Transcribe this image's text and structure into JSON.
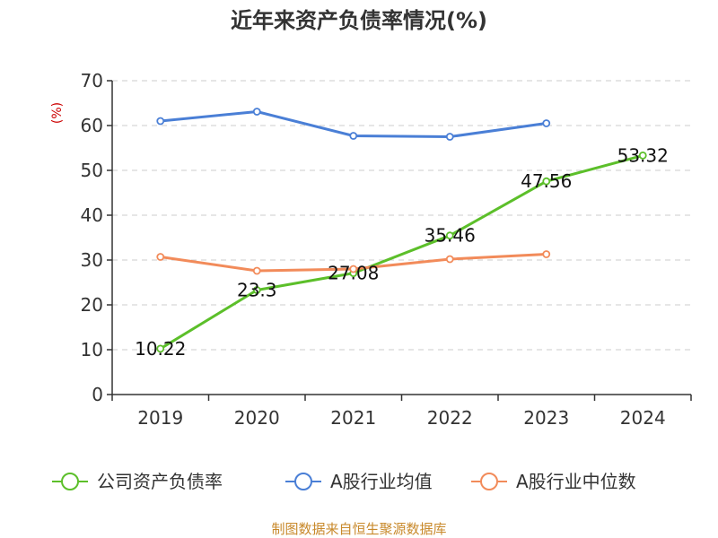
{
  "chart_data": {
    "type": "line",
    "title": "近年来资产负债率情况(%)",
    "ylabel": "(%)",
    "xlabel": "",
    "categories": [
      "2019",
      "2020",
      "2021",
      "2022",
      "2023",
      "2024"
    ],
    "ylim": [
      0,
      70
    ],
    "yticks": [
      0,
      10,
      20,
      30,
      40,
      50,
      60,
      70
    ],
    "grid": true,
    "legend_position": "bottom",
    "series": [
      {
        "name": "公司资产负债率",
        "color": "#5cbf2a",
        "show_labels": true,
        "values": [
          10.22,
          23.3,
          27.08,
          35.46,
          47.56,
          53.32
        ],
        "labels": [
          "10.22",
          "23.3",
          "27.08",
          "35.46",
          "47.56",
          "53.32"
        ]
      },
      {
        "name": "A股行业均值",
        "color": "#4a7fd6",
        "show_labels": false,
        "values": [
          61.0,
          63.1,
          57.7,
          57.5,
          60.5,
          null
        ]
      },
      {
        "name": "A股行业中位数",
        "color": "#f28b5a",
        "show_labels": false,
        "values": [
          30.7,
          27.6,
          28.0,
          30.2,
          31.3,
          null
        ]
      }
    ]
  },
  "source_note": "制图数据来自恒生聚源数据库"
}
